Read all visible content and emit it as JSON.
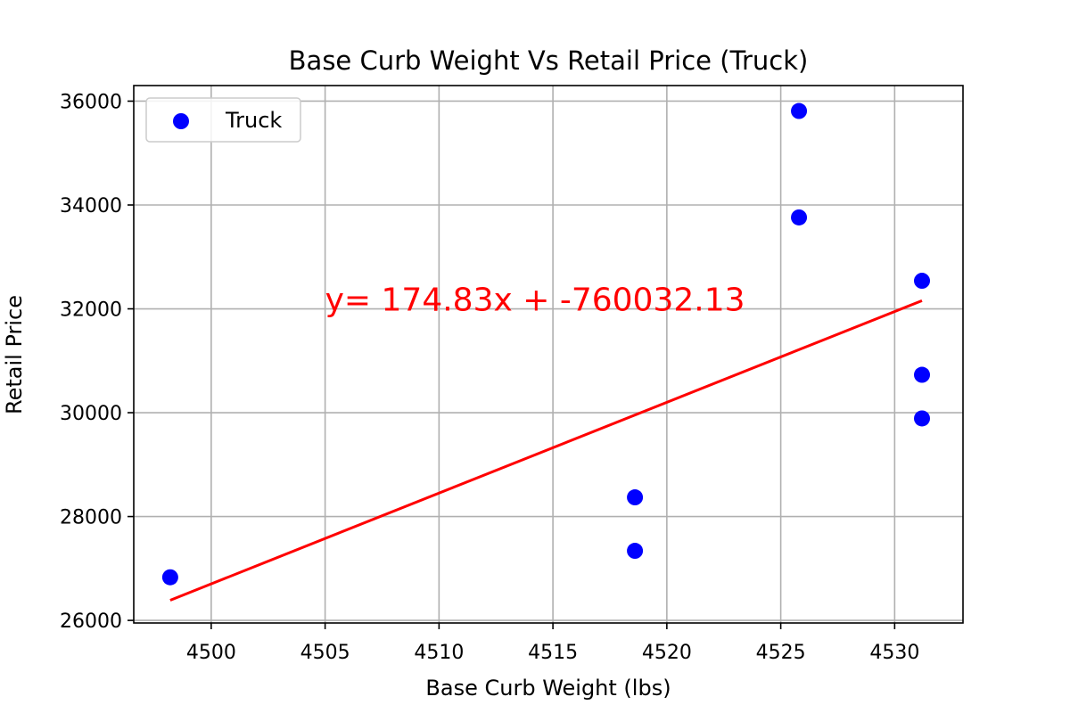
{
  "chart_data": {
    "type": "scatter",
    "title": "Base Curb Weight Vs Retail Price (Truck)",
    "xlabel": "Base Curb Weight (lbs)",
    "ylabel": "Retail Price",
    "xlim": [
      4496.6,
      4533.0
    ],
    "ylim": [
      25950,
      36300
    ],
    "xticks": [
      4500,
      4505,
      4510,
      4515,
      4520,
      4525,
      4530
    ],
    "yticks": [
      26000,
      28000,
      30000,
      32000,
      34000,
      36000
    ],
    "grid": true,
    "legend_position": "top-left",
    "series": [
      {
        "name": "Truck",
        "color": "#0000ff",
        "marker": "circle",
        "points": [
          {
            "x": 4498.2,
            "y": 26830
          },
          {
            "x": 4518.6,
            "y": 28370
          },
          {
            "x": 4518.6,
            "y": 27340
          },
          {
            "x": 4525.8,
            "y": 35810
          },
          {
            "x": 4525.8,
            "y": 33760
          },
          {
            "x": 4531.2,
            "y": 32540
          },
          {
            "x": 4531.2,
            "y": 30730
          },
          {
            "x": 4531.2,
            "y": 29890
          }
        ]
      }
    ],
    "regression": {
      "color": "#ff0000",
      "slope": 174.83,
      "intercept": -760032.13,
      "x_range": [
        4498.2,
        4531.2
      ],
      "equation_text": "y= 174.83x + -760032.13",
      "equation_anchor": {
        "x": 4505.0,
        "y": 32000
      }
    }
  }
}
